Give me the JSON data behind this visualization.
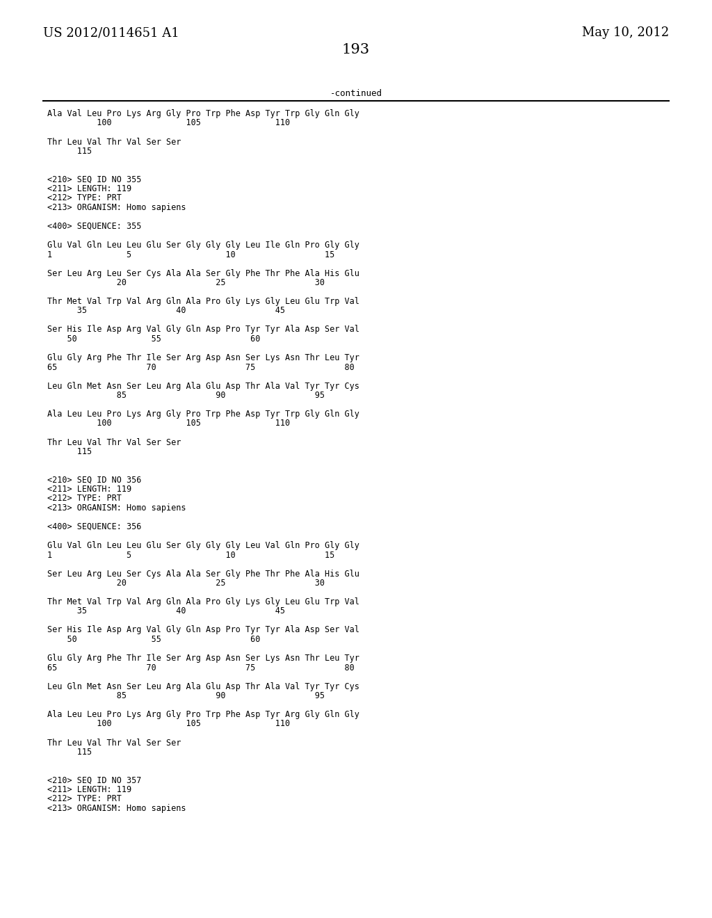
{
  "header_left": "US 2012/0114651 A1",
  "header_right": "May 10, 2012",
  "page_number": "193",
  "continued_label": "-continued",
  "background_color": "#ffffff",
  "text_color": "#000000",
  "font_size_header": 13,
  "font_size_body": 8.5,
  "font_size_page": 15,
  "lines": [
    "Ala Val Leu Pro Lys Arg Gly Pro Trp Phe Asp Tyr Trp Gly Gln Gly",
    "          100               105               110",
    "",
    "Thr Leu Val Thr Val Ser Ser",
    "      115",
    "",
    "",
    "<210> SEQ ID NO 355",
    "<211> LENGTH: 119",
    "<212> TYPE: PRT",
    "<213> ORGANISM: Homo sapiens",
    "",
    "<400> SEQUENCE: 355",
    "",
    "Glu Val Gln Leu Leu Glu Ser Gly Gly Gly Leu Ile Gln Pro Gly Gly",
    "1               5                   10                  15",
    "",
    "Ser Leu Arg Leu Ser Cys Ala Ala Ser Gly Phe Thr Phe Ala His Glu",
    "              20                  25                  30",
    "",
    "Thr Met Val Trp Val Arg Gln Ala Pro Gly Lys Gly Leu Glu Trp Val",
    "      35                  40                  45",
    "",
    "Ser His Ile Asp Arg Val Gly Gln Asp Pro Tyr Tyr Ala Asp Ser Val",
    "    50               55                  60",
    "",
    "Glu Gly Arg Phe Thr Ile Ser Arg Asp Asn Ser Lys Asn Thr Leu Tyr",
    "65                  70                  75                  80",
    "",
    "Leu Gln Met Asn Ser Leu Arg Ala Glu Asp Thr Ala Val Tyr Tyr Cys",
    "              85                  90                  95",
    "",
    "Ala Leu Leu Pro Lys Arg Gly Pro Trp Phe Asp Tyr Trp Gly Gln Gly",
    "          100               105               110",
    "",
    "Thr Leu Val Thr Val Ser Ser",
    "      115",
    "",
    "",
    "<210> SEQ ID NO 356",
    "<211> LENGTH: 119",
    "<212> TYPE: PRT",
    "<213> ORGANISM: Homo sapiens",
    "",
    "<400> SEQUENCE: 356",
    "",
    "Glu Val Gln Leu Leu Glu Ser Gly Gly Gly Leu Val Gln Pro Gly Gly",
    "1               5                   10                  15",
    "",
    "Ser Leu Arg Leu Ser Cys Ala Ala Ser Gly Phe Thr Phe Ala His Glu",
    "              20                  25                  30",
    "",
    "Thr Met Val Trp Val Arg Gln Ala Pro Gly Lys Gly Leu Glu Trp Val",
    "      35                  40                  45",
    "",
    "Ser His Ile Asp Arg Val Gly Gln Asp Pro Tyr Tyr Ala Asp Ser Val",
    "    50               55                  60",
    "",
    "Glu Gly Arg Phe Thr Ile Ser Arg Asp Asn Ser Lys Asn Thr Leu Tyr",
    "65                  70                  75                  80",
    "",
    "Leu Gln Met Asn Ser Leu Arg Ala Glu Asp Thr Ala Val Tyr Tyr Cys",
    "              85                  90                  95",
    "",
    "Ala Leu Leu Pro Lys Arg Gly Pro Trp Phe Asp Tyr Arg Gly Gln Gly",
    "          100               105               110",
    "",
    "Thr Leu Val Thr Val Ser Ser",
    "      115",
    "",
    "",
    "<210> SEQ ID NO 357",
    "<211> LENGTH: 119",
    "<212> TYPE: PRT",
    "<213> ORGANISM: Homo sapiens"
  ]
}
